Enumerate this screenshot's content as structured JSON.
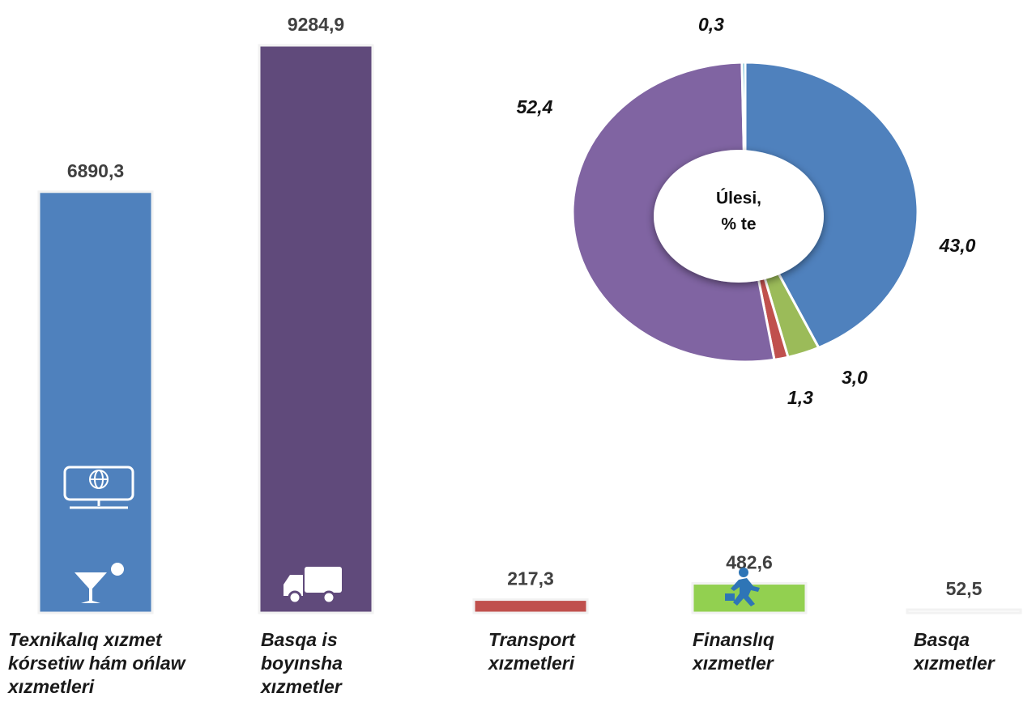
{
  "chart_data": [
    {
      "type": "bar",
      "categories": [
        "Texnikalıq xızmet kórsetiw hám ońlaw xızmetleri",
        "Basqa is boyınsha xızmetler",
        "Transport xızmetleri",
        "Finanslıq xızmetler",
        "Basqa xızmetler"
      ],
      "values": [
        6890.3,
        9284.9,
        217.3,
        482.6,
        52.5
      ],
      "value_labels": [
        "6890,3",
        "9284,9",
        "217,3",
        "482,6",
        "52,5"
      ],
      "colors": [
        "#4f81bd",
        "#604a7b",
        "#c0504d",
        "#92d050",
        "#ffffff"
      ]
    },
    {
      "type": "pie",
      "center_text": [
        "Úlesi,",
        "% te"
      ],
      "values": [
        43.0,
        3.0,
        1.3,
        52.4,
        0.3
      ],
      "value_labels": [
        "43,0",
        "3,0",
        "1,3",
        "52,4",
        "0,3"
      ],
      "colors": [
        "#4f81bd",
        "#9bbb59",
        "#c0504d",
        "#8064a2",
        "#4bacc6"
      ]
    }
  ]
}
